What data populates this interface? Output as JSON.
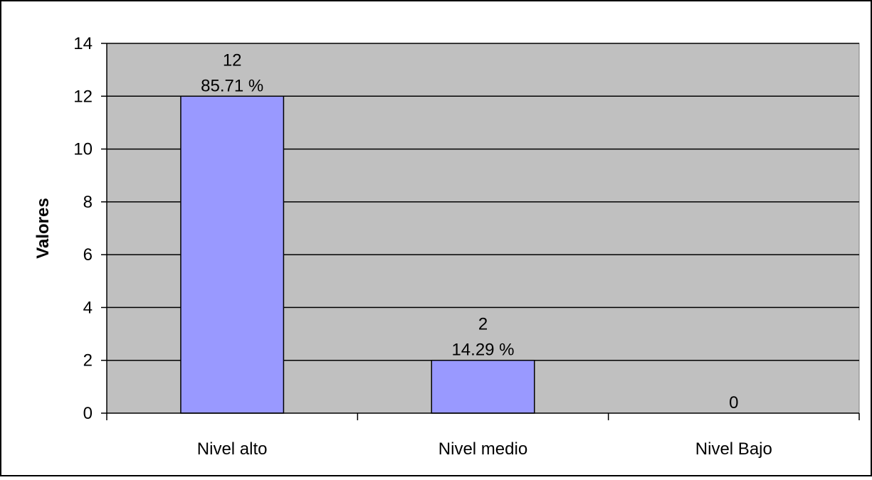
{
  "chart_data": {
    "type": "bar",
    "title": "",
    "xlabel": "",
    "ylabel": "Valores",
    "ylim": [
      0,
      14
    ],
    "yticks": [
      "0",
      "2",
      "4",
      "6",
      "8",
      "10",
      "12",
      "14"
    ],
    "categories": [
      "Nivel alto",
      "Nivel medio",
      "Nivel Bajo"
    ],
    "values": [
      12,
      2,
      0
    ],
    "data_labels": [
      [
        "12",
        "85.71 %"
      ],
      [
        "2",
        "14.29 %"
      ],
      [
        "0"
      ]
    ],
    "grid": true,
    "legend": "none",
    "colors": {
      "plot_background": "#c0c0c0",
      "bar_fill": "#9999ff",
      "bar_stroke": "#000000",
      "gridline": "#000000",
      "frame": "#000000"
    }
  }
}
